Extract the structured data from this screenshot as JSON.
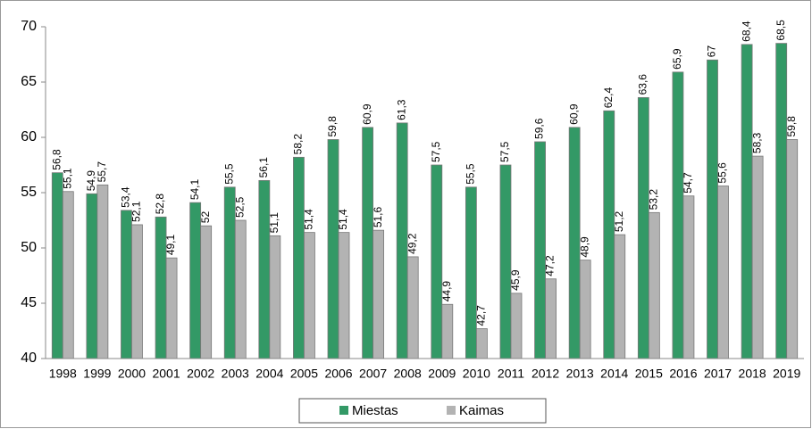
{
  "chart_data": {
    "type": "bar",
    "categories": [
      "1998",
      "1999",
      "2000",
      "2001",
      "2002",
      "2003",
      "2004",
      "2005",
      "2006",
      "2007",
      "2008",
      "2009",
      "2010",
      "2011",
      "2012",
      "2013",
      "2014",
      "2015",
      "2016",
      "2017",
      "2018",
      "2019"
    ],
    "series": [
      {
        "name": "Miestas",
        "color": "#339966",
        "values": [
          56.8,
          54.9,
          53.4,
          52.8,
          54.1,
          55.5,
          56.1,
          58.2,
          59.8,
          60.9,
          61.3,
          57.5,
          55.5,
          57.5,
          59.6,
          60.9,
          62.4,
          63.6,
          65.9,
          67,
          68.4,
          68.5
        ],
        "value_labels": [
          "56,8",
          "54,9",
          "53,4",
          "52,8",
          "54,1",
          "55,5",
          "56,1",
          "58,2",
          "59,8",
          "60,9",
          "61,3",
          "57,5",
          "55,5",
          "57,5",
          "59,6",
          "60,9",
          "62,4",
          "63,6",
          "65,9",
          "67",
          "68,4",
          "68,5"
        ]
      },
      {
        "name": "Kaimas",
        "color": "#b3b3b3",
        "values": [
          55.1,
          55.7,
          52.1,
          49.1,
          52,
          52.5,
          51.1,
          51.4,
          51.4,
          51.6,
          49.2,
          44.9,
          42.7,
          45.9,
          47.2,
          48.9,
          51.2,
          53.2,
          54.7,
          55.6,
          58.3,
          59.8
        ],
        "value_labels": [
          "55,1",
          "55,7",
          "52,1",
          "49,1",
          "52",
          "52,5",
          "51,1",
          "51,4",
          "51,4",
          "51,6",
          "49,2",
          "44,9",
          "42,7",
          "45,9",
          "47,2",
          "48,9",
          "51,2",
          "53,2",
          "54,7",
          "55,6",
          "58,3",
          "59,8"
        ]
      }
    ],
    "ylim": [
      40,
      70
    ],
    "yticks": [
      40,
      45,
      50,
      55,
      60,
      65,
      70
    ],
    "legend": "bottom"
  }
}
